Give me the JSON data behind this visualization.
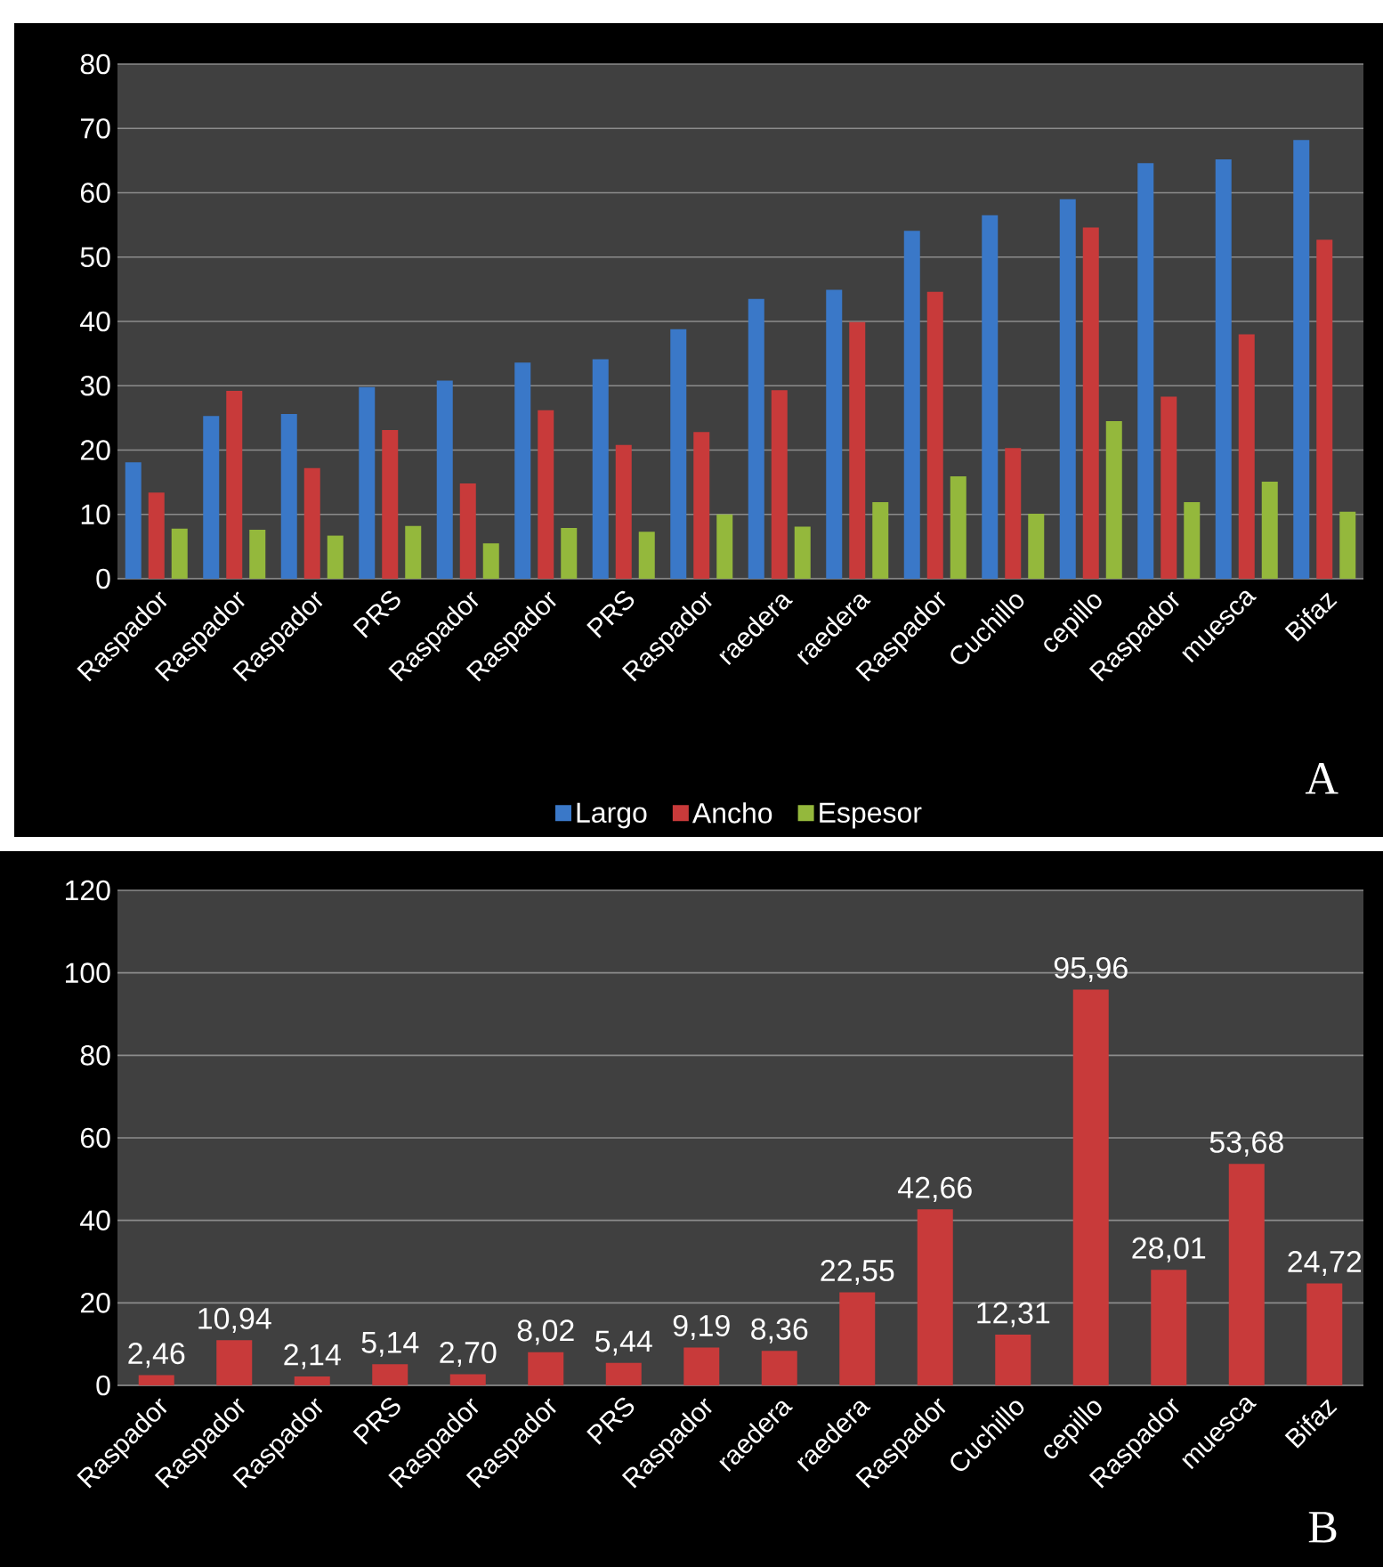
{
  "chart_data": [
    {
      "type": "bar",
      "categories": [
        "Raspador",
        "Raspador",
        "Raspador",
        "PRS",
        "Raspador",
        "Raspador",
        "PRS",
        "Raspador",
        "raedera",
        "raedera",
        "Raspador",
        "Cuchillo",
        "cepillo",
        "Raspador",
        "muesca",
        "Bifaz"
      ],
      "series": [
        {
          "name": "Largo",
          "color": "#3a78c8",
          "values": [
            18.1,
            25.3,
            25.6,
            29.8,
            30.8,
            33.6,
            34.1,
            38.8,
            43.5,
            44.9,
            54.1,
            56.5,
            59.0,
            64.6,
            65.2,
            68.2
          ]
        },
        {
          "name": "Ancho",
          "color": "#c83a3a",
          "values": [
            13.4,
            29.2,
            17.2,
            23.1,
            14.8,
            26.2,
            20.8,
            22.8,
            29.3,
            39.9,
            44.6,
            20.3,
            54.6,
            28.3,
            38.0,
            52.7
          ]
        },
        {
          "name": "Espesor",
          "color": "#94b83c",
          "values": [
            7.8,
            7.6,
            6.7,
            8.2,
            5.5,
            7.9,
            7.3,
            10.0,
            8.1,
            11.9,
            15.9,
            10.1,
            24.5,
            11.9,
            15.1,
            10.4
          ]
        }
      ],
      "ylim": [
        0,
        80
      ],
      "yticks": [
        0,
        10,
        20,
        30,
        40,
        50,
        60,
        70,
        80
      ],
      "grid": "y",
      "legend": "bottom",
      "annotations": [
        "A"
      ]
    },
    {
      "type": "bar",
      "categories": [
        "Raspador",
        "Raspador",
        "Raspador",
        "PRS",
        "Raspador",
        "Raspador",
        "PRS",
        "Raspador",
        "raedera",
        "raedera",
        "Raspador",
        "Cuchillo",
        "cepillo",
        "Raspador",
        "muesca",
        "Bifaz"
      ],
      "values": [
        2.46,
        10.94,
        2.14,
        5.14,
        2.7,
        8.02,
        5.44,
        9.19,
        8.36,
        22.55,
        42.66,
        12.31,
        95.96,
        28.01,
        53.68,
        24.72
      ],
      "value_labels": [
        "2,46",
        "10,94",
        "2,14",
        "5,14",
        "2,70",
        "8,02",
        "5,44",
        "9,19",
        "8,36",
        "22,55",
        "42,66",
        "12,31",
        "95,96",
        "28,01",
        "53,68",
        "24,72"
      ],
      "color": "#c83a3a",
      "ylim": [
        0,
        120
      ],
      "yticks": [
        0,
        20,
        40,
        60,
        80,
        100,
        120
      ],
      "grid": "y",
      "annotations": [
        "B"
      ]
    }
  ]
}
